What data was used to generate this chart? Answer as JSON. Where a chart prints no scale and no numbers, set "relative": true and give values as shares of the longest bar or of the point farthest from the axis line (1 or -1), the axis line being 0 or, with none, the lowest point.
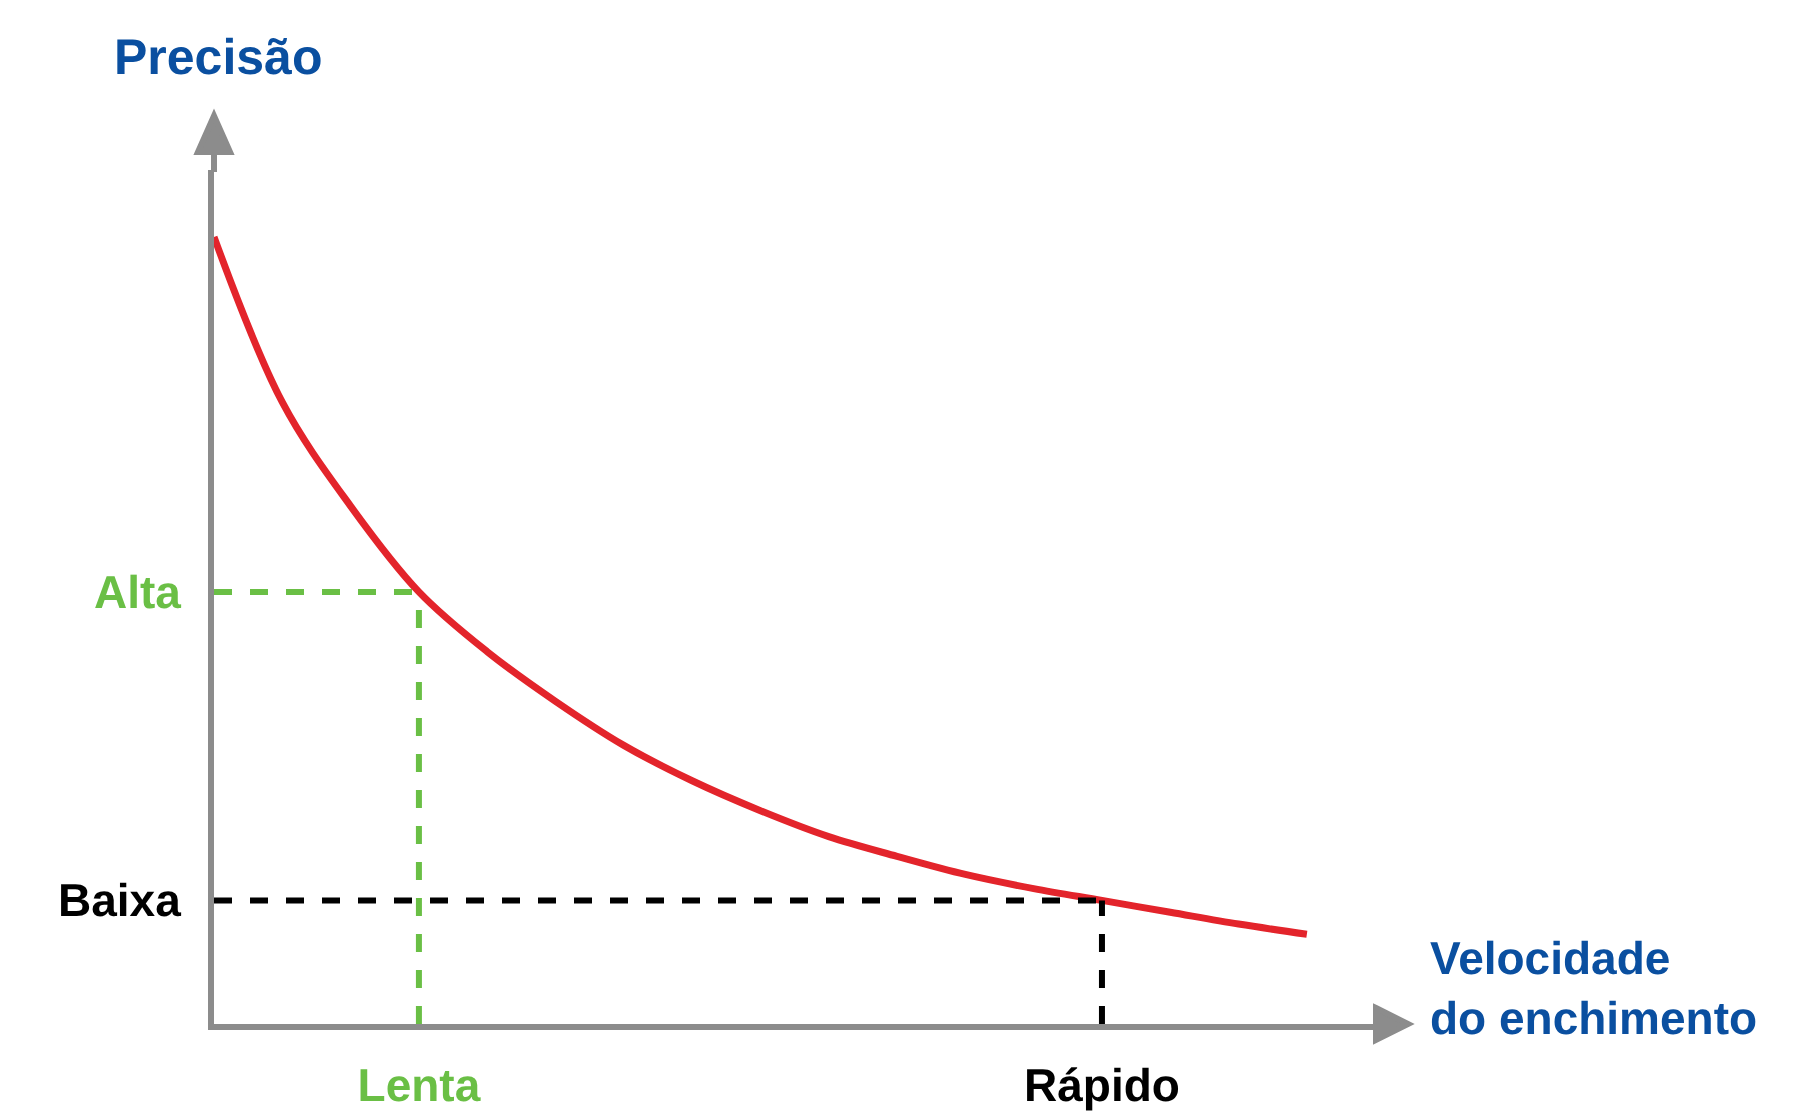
{
  "chart_data": {
    "type": "line",
    "relative": true,
    "xlabel": "Velocidade\ndo enchimento",
    "ylabel": "Precisão",
    "categories": [
      null,
      null,
      null,
      "Lenta",
      null,
      null,
      null,
      null,
      null,
      null,
      null,
      null,
      null,
      "Rápido",
      null,
      null,
      null
    ],
    "series": [
      {
        "color": "#e3242b",
        "values": [
          1,
          0.79,
          0.658,
          0.549,
          0.473,
          0.41,
          0.354,
          0.309,
          0.271,
          0.238,
          0.213,
          0.19,
          0.172,
          0.157,
          0.142,
          0.127,
          0.114
        ]
      }
    ],
    "ref_lines": [
      {
        "axis": "y",
        "value": 0.549,
        "label": "Alta",
        "color": "#6abf45",
        "line_style": "dashed"
      },
      {
        "axis": "x",
        "value": "Lenta",
        "color": "#6abf45",
        "line_style": "dashed"
      },
      {
        "axis": "y",
        "value": 0.157,
        "label": "Baixa",
        "color": "#000000",
        "line_style": "dashed"
      },
      {
        "axis": "x",
        "value": "Rápido",
        "color": "#000000",
        "line_style": "dashed"
      }
    ],
    "marker": "none",
    "line_style": "solid"
  }
}
